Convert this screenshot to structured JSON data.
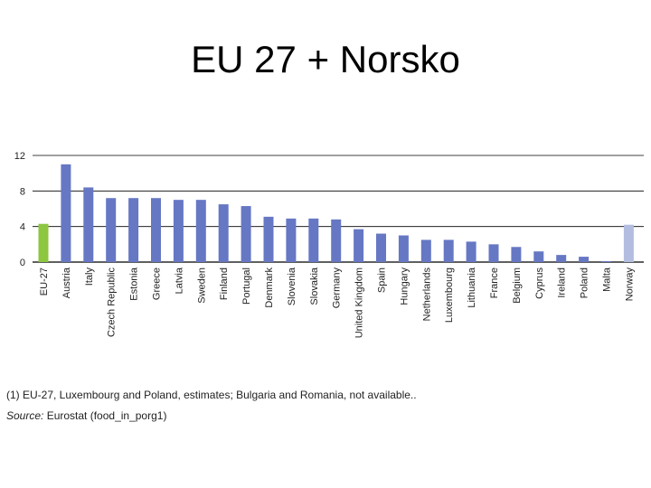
{
  "slide": {
    "title": "EU 27 + Norsko"
  },
  "chart_data": {
    "type": "bar",
    "title": "",
    "xlabel": "",
    "ylabel": "",
    "ylim": [
      0,
      12
    ],
    "yticks": [
      0,
      4,
      8,
      12
    ],
    "grid": true,
    "categories": [
      "EU-27",
      "Austria",
      "Italy",
      "Czech Republic",
      "Estonia",
      "Greece",
      "Latvia",
      "Sweden",
      "Finland",
      "Portugal",
      "Denmark",
      "Slovenia",
      "Slovakia",
      "Germany",
      "United Kingdom",
      "Spain",
      "Hungary",
      "Netherlands",
      "Luxembourg",
      "Lithuania",
      "France",
      "Belgium",
      "Cyprus",
      "Ireland",
      "Poland",
      "Malta",
      "Norway"
    ],
    "values": [
      4.3,
      11.0,
      8.4,
      7.2,
      7.2,
      7.2,
      7.0,
      7.0,
      6.5,
      6.3,
      5.1,
      4.9,
      4.9,
      4.8,
      3.7,
      3.2,
      3.0,
      2.5,
      2.5,
      2.3,
      2.0,
      1.7,
      1.2,
      0.8,
      0.6,
      0.1,
      4.2
    ],
    "colors": {
      "default": "#6677c4",
      "highlight": "#8dc63f",
      "non_eu": "#b3bde0",
      "grid": "#000000",
      "axis_text": "#222222"
    },
    "highlight_index": 0,
    "non_eu_index": 26
  },
  "notes": {
    "footnote": "(1) EU-27, Luxembourg and Poland, estimates; Bulgaria and Romania, not available..",
    "source_label": "Source:",
    "source_text": " Eurostat (food_in_porg1)"
  }
}
